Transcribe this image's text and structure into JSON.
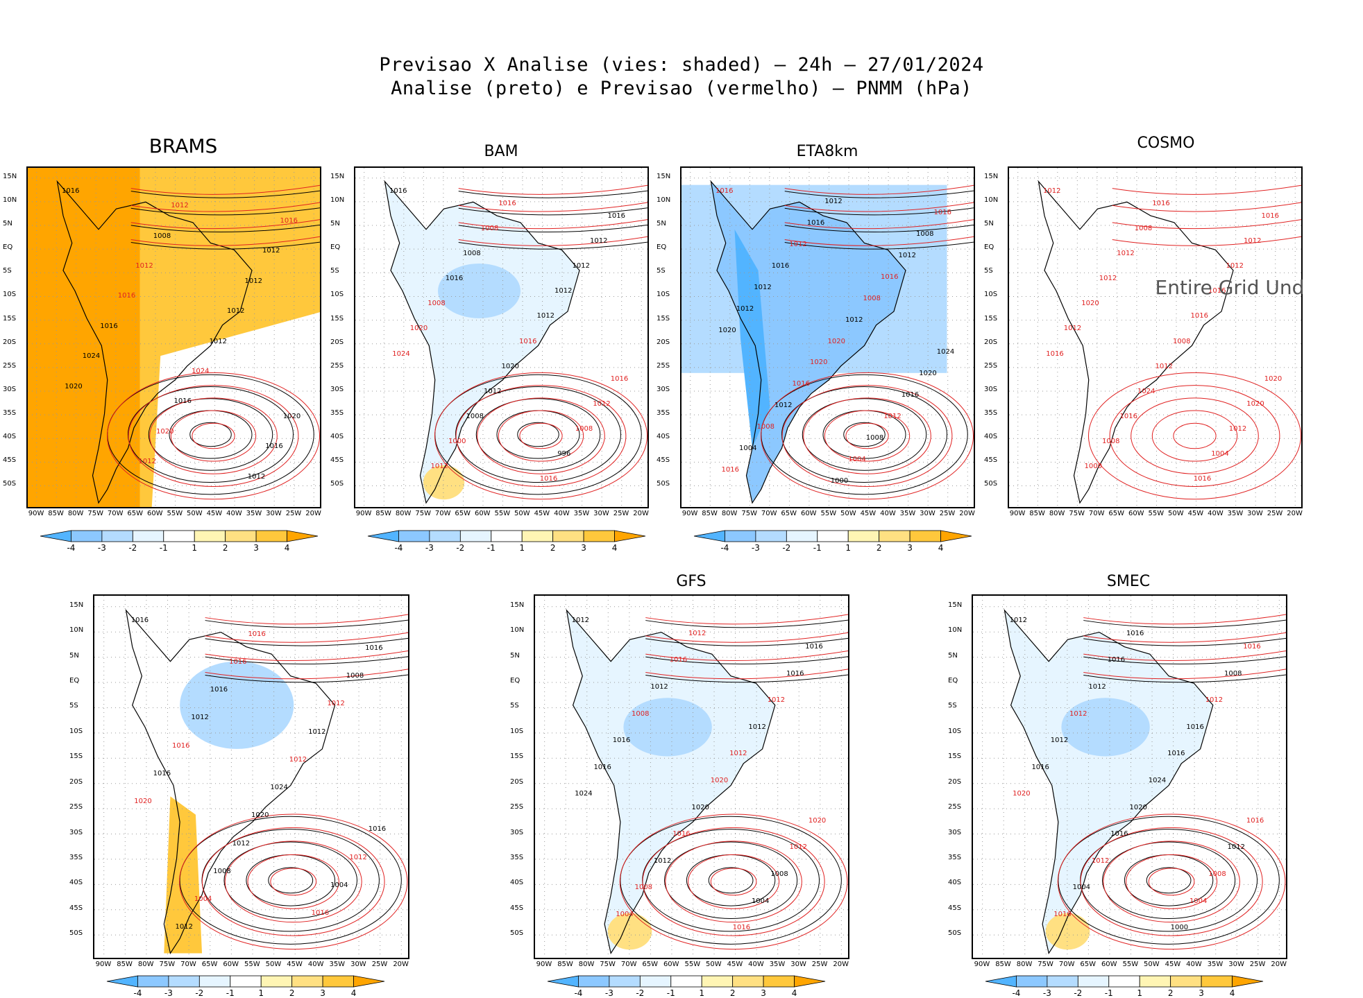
{
  "figure": {
    "title_line1": "Previsao X Analise (vies: shaded) – 24h – 27/01/2024",
    "title_line2": "Analise (preto) e Previsao (vermelho) – PNMM (hPa)"
  },
  "axes": {
    "lat_labels": [
      "15N",
      "10N",
      "5N",
      "EQ",
      "5S",
      "10S",
      "15S",
      "20S",
      "25S",
      "30S",
      "35S",
      "40S",
      "45S",
      "50S"
    ],
    "lon_labels": [
      "90W",
      "85W",
      "80W",
      "75W",
      "70W",
      "65W",
      "60W",
      "55W",
      "50W",
      "45W",
      "40W",
      "35W",
      "30W",
      "25W",
      "20W"
    ]
  },
  "colorbar": {
    "labels": [
      "-4",
      "-3",
      "-2",
      "-1",
      "1",
      "2",
      "3",
      "4"
    ],
    "colors": [
      "#52b4ff",
      "#8cc8ff",
      "#b4dcff",
      "#e6f5ff",
      "#ffffff",
      "#fff5b4",
      "#ffe082",
      "#ffc83c",
      "#ffa500"
    ]
  },
  "colors": {
    "analysis": "#000000",
    "forecast": "#e02020"
  },
  "panels": [
    {
      "name": "BRAMS",
      "bias_fill": "warm",
      "labels": [
        {
          "t": "1016",
          "c": "a"
        },
        {
          "t": "1012",
          "c": "f"
        },
        {
          "t": "1016",
          "c": "f"
        },
        {
          "t": "1008",
          "c": "a"
        },
        {
          "t": "1012",
          "c": "a"
        },
        {
          "t": "1012",
          "c": "f"
        },
        {
          "t": "1012",
          "c": "a"
        },
        {
          "t": "1016",
          "c": "f"
        },
        {
          "t": "1012",
          "c": "a"
        },
        {
          "t": "1016",
          "c": "a"
        },
        {
          "t": "1012",
          "c": "a"
        },
        {
          "t": "1024",
          "c": "a"
        },
        {
          "t": "1024",
          "c": "f"
        },
        {
          "t": "1020",
          "c": "a"
        },
        {
          "t": "1016",
          "c": "a"
        },
        {
          "t": "1020",
          "c": "a"
        },
        {
          "t": "1020",
          "c": "f"
        },
        {
          "t": "1016",
          "c": "a"
        },
        {
          "t": "1012",
          "c": "f"
        },
        {
          "t": "1012",
          "c": "a"
        }
      ]
    },
    {
      "name": "BAM",
      "bias_fill": "cool",
      "labels": [
        {
          "t": "1016",
          "c": "a"
        },
        {
          "t": "1016",
          "c": "f"
        },
        {
          "t": "1016",
          "c": "a"
        },
        {
          "t": "1008",
          "c": "f"
        },
        {
          "t": "1012",
          "c": "a"
        },
        {
          "t": "1008",
          "c": "a"
        },
        {
          "t": "1012",
          "c": "a"
        },
        {
          "t": "1016",
          "c": "a"
        },
        {
          "t": "1012",
          "c": "a"
        },
        {
          "t": "1008",
          "c": "f"
        },
        {
          "t": "1012",
          "c": "a"
        },
        {
          "t": "1020",
          "c": "f"
        },
        {
          "t": "1016",
          "c": "f"
        },
        {
          "t": "1024",
          "c": "f"
        },
        {
          "t": "1020",
          "c": "a"
        },
        {
          "t": "1016",
          "c": "f"
        },
        {
          "t": "1012",
          "c": "a"
        },
        {
          "t": "1012",
          "c": "f"
        },
        {
          "t": "1008",
          "c": "a"
        },
        {
          "t": "1008",
          "c": "f"
        },
        {
          "t": "1000",
          "c": "f"
        },
        {
          "t": "996",
          "c": "a"
        },
        {
          "t": "1012",
          "c": "f"
        },
        {
          "t": "1016",
          "c": "f"
        }
      ]
    },
    {
      "name": "ETA8km",
      "bias_fill": "cool-strong",
      "labels": [
        {
          "t": "1016",
          "c": "f"
        },
        {
          "t": "1012",
          "c": "a"
        },
        {
          "t": "1016",
          "c": "f"
        },
        {
          "t": "1016",
          "c": "a"
        },
        {
          "t": "1008",
          "c": "a"
        },
        {
          "t": "1012",
          "c": "f"
        },
        {
          "t": "1012",
          "c": "a"
        },
        {
          "t": "1016",
          "c": "a"
        },
        {
          "t": "1016",
          "c": "f"
        },
        {
          "t": "1012",
          "c": "a"
        },
        {
          "t": "1008",
          "c": "f"
        },
        {
          "t": "1012",
          "c": "a"
        },
        {
          "t": "1012",
          "c": "a"
        },
        {
          "t": "1020",
          "c": "a"
        },
        {
          "t": "1020",
          "c": "f"
        },
        {
          "t": "1024",
          "c": "a"
        },
        {
          "t": "1020",
          "c": "f"
        },
        {
          "t": "1020",
          "c": "a"
        },
        {
          "t": "1016",
          "c": "f"
        },
        {
          "t": "1016",
          "c": "a"
        },
        {
          "t": "1012",
          "c": "a"
        },
        {
          "t": "1012",
          "c": "f"
        },
        {
          "t": "1008",
          "c": "f"
        },
        {
          "t": "1008",
          "c": "a"
        },
        {
          "t": "1004",
          "c": "a"
        },
        {
          "t": "1004",
          "c": "f"
        },
        {
          "t": "1016",
          "c": "f"
        },
        {
          "t": "1000",
          "c": "a"
        }
      ]
    },
    {
      "name": "COSMO",
      "bias_fill": "none",
      "undefined_text": "Entire Grid Und",
      "labels": [
        {
          "t": "1012",
          "c": "f"
        },
        {
          "t": "1016",
          "c": "f"
        },
        {
          "t": "1016",
          "c": "f"
        },
        {
          "t": "1008",
          "c": "f"
        },
        {
          "t": "1012",
          "c": "f"
        },
        {
          "t": "1012",
          "c": "f"
        },
        {
          "t": "1012",
          "c": "f"
        },
        {
          "t": "1012",
          "c": "f"
        },
        {
          "t": "1016",
          "c": "f"
        },
        {
          "t": "1020",
          "c": "f"
        },
        {
          "t": "1016",
          "c": "f"
        },
        {
          "t": "1012",
          "c": "f"
        },
        {
          "t": "1008",
          "c": "f"
        },
        {
          "t": "1016",
          "c": "f"
        },
        {
          "t": "1012",
          "c": "f"
        },
        {
          "t": "1020",
          "c": "f"
        },
        {
          "t": "1024",
          "c": "f"
        },
        {
          "t": "1020",
          "c": "f"
        },
        {
          "t": "1016",
          "c": "f"
        },
        {
          "t": "1012",
          "c": "f"
        },
        {
          "t": "1008",
          "c": "f"
        },
        {
          "t": "1004",
          "c": "f"
        },
        {
          "t": "1000",
          "c": "f"
        },
        {
          "t": "1016",
          "c": "f"
        }
      ]
    },
    {
      "name": "",
      "bias_fill": "mixed",
      "labels": [
        {
          "t": "1016",
          "c": "a"
        },
        {
          "t": "1016",
          "c": "f"
        },
        {
          "t": "1016",
          "c": "a"
        },
        {
          "t": "1016",
          "c": "f"
        },
        {
          "t": "1008",
          "c": "a"
        },
        {
          "t": "1016",
          "c": "a"
        },
        {
          "t": "1012",
          "c": "f"
        },
        {
          "t": "1012",
          "c": "a"
        },
        {
          "t": "1012",
          "c": "a"
        },
        {
          "t": "1016",
          "c": "f"
        },
        {
          "t": "1012",
          "c": "f"
        },
        {
          "t": "1016",
          "c": "a"
        },
        {
          "t": "1024",
          "c": "a"
        },
        {
          "t": "1020",
          "c": "f"
        },
        {
          "t": "1020",
          "c": "a"
        },
        {
          "t": "1016",
          "c": "a"
        },
        {
          "t": "1012",
          "c": "a"
        },
        {
          "t": "1012",
          "c": "f"
        },
        {
          "t": "1008",
          "c": "a"
        },
        {
          "t": "1004",
          "c": "a"
        },
        {
          "t": "1004",
          "c": "f"
        },
        {
          "t": "1016",
          "c": "f"
        },
        {
          "t": "1012",
          "c": "a"
        }
      ]
    },
    {
      "name": "GFS",
      "bias_fill": "cool",
      "labels": [
        {
          "t": "1012",
          "c": "a"
        },
        {
          "t": "1012",
          "c": "f"
        },
        {
          "t": "1016",
          "c": "a"
        },
        {
          "t": "1016",
          "c": "f"
        },
        {
          "t": "1016",
          "c": "a"
        },
        {
          "t": "1012",
          "c": "a"
        },
        {
          "t": "1012",
          "c": "f"
        },
        {
          "t": "1008",
          "c": "f"
        },
        {
          "t": "1012",
          "c": "a"
        },
        {
          "t": "1016",
          "c": "a"
        },
        {
          "t": "1012",
          "c": "f"
        },
        {
          "t": "1016",
          "c": "a"
        },
        {
          "t": "1020",
          "c": "f"
        },
        {
          "t": "1024",
          "c": "a"
        },
        {
          "t": "1020",
          "c": "a"
        },
        {
          "t": "1020",
          "c": "f"
        },
        {
          "t": "1016",
          "c": "f"
        },
        {
          "t": "1012",
          "c": "f"
        },
        {
          "t": "1012",
          "c": "a"
        },
        {
          "t": "1008",
          "c": "a"
        },
        {
          "t": "1008",
          "c": "f"
        },
        {
          "t": "1004",
          "c": "a"
        },
        {
          "t": "1004",
          "c": "f"
        },
        {
          "t": "1016",
          "c": "f"
        }
      ]
    },
    {
      "name": "SMEC",
      "bias_fill": "cool",
      "labels": [
        {
          "t": "1012",
          "c": "a"
        },
        {
          "t": "1016",
          "c": "a"
        },
        {
          "t": "1016",
          "c": "f"
        },
        {
          "t": "1016",
          "c": "a"
        },
        {
          "t": "1008",
          "c": "a"
        },
        {
          "t": "1012",
          "c": "a"
        },
        {
          "t": "1012",
          "c": "f"
        },
        {
          "t": "1012",
          "c": "f"
        },
        {
          "t": "1016",
          "c": "a"
        },
        {
          "t": "1012",
          "c": "a"
        },
        {
          "t": "1016",
          "c": "a"
        },
        {
          "t": "1016",
          "c": "a"
        },
        {
          "t": "1024",
          "c": "a"
        },
        {
          "t": "1020",
          "c": "f"
        },
        {
          "t": "1020",
          "c": "a"
        },
        {
          "t": "1016",
          "c": "f"
        },
        {
          "t": "1016",
          "c": "a"
        },
        {
          "t": "1012",
          "c": "a"
        },
        {
          "t": "1012",
          "c": "f"
        },
        {
          "t": "1008",
          "c": "f"
        },
        {
          "t": "1004",
          "c": "a"
        },
        {
          "t": "1004",
          "c": "f"
        },
        {
          "t": "1016",
          "c": "f"
        },
        {
          "t": "1000",
          "c": "a"
        }
      ]
    }
  ]
}
